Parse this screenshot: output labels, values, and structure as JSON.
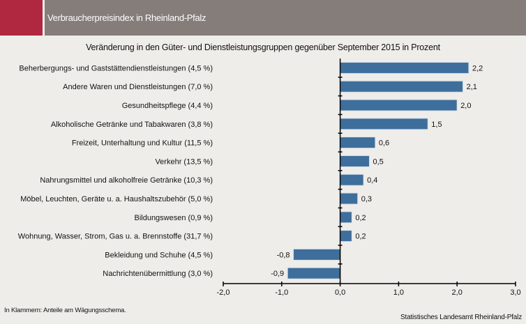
{
  "header": {
    "title": "Verbraucherpreisindex in Rheinland-Pfalz",
    "accent_color": "#b0283f",
    "band_color": "#857d7a"
  },
  "footer": {
    "note": "In Klammern: Anteile am Wägungsschema.",
    "source": "Statistisches Landesamt Rheinland-Pfalz"
  },
  "chart_data": {
    "type": "bar",
    "orientation": "horizontal",
    "title": "Veränderung in den Güter- und Dienstleistungsgruppen gegenüber September 2015 in Prozent",
    "categories": [
      "Beherbergungs- und Gaststättendienstleistungen (4,5 %)",
      "Andere Waren und Dienstleistungen (7,0 %)",
      "Gesundheitspflege (4,4 %)",
      "Alkoholische Getränke und Tabakwaren (3,8 %)",
      "Freizeit, Unterhaltung und Kultur (11,5 %)",
      "Verkehr (13,5 %)",
      "Nahrungsmittel und alkoholfreie Getränke (10,3 %)",
      "Möbel, Leuchten, Geräte u. a. Haushaltszubehör (5,0 %)",
      "Bildungswesen (0,9 %)",
      "Wohnung, Wasser, Strom, Gas u. a. Brennstoffe (31,7 %)",
      "Bekleidung und Schuhe (4,5 %)",
      "Nachrichtenübermittlung (3,0 %)"
    ],
    "values": [
      2.2,
      2.1,
      2.0,
      1.5,
      0.6,
      0.5,
      0.4,
      0.3,
      0.2,
      0.2,
      -0.8,
      -0.9
    ],
    "data_labels": [
      "2,2",
      "2,1",
      "2,0",
      "1,5",
      "0,6",
      "0,5",
      "0,4",
      "0,3",
      "0,2",
      "0,2",
      "-0,8",
      "-0,9"
    ],
    "xlim": [
      -2.0,
      3.0
    ],
    "xticks": [
      -2.0,
      -1.0,
      0.0,
      1.0,
      2.0,
      3.0
    ],
    "xtick_labels": [
      "-2,0",
      "-1,0",
      "0,0",
      "1,0",
      "2,0",
      "3,0"
    ],
    "grid": false,
    "bar_color": "#3e6e9b"
  }
}
